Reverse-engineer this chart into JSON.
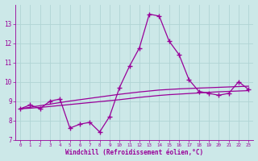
{
  "x": [
    0,
    1,
    2,
    3,
    4,
    5,
    6,
    7,
    8,
    9,
    10,
    11,
    12,
    13,
    14,
    15,
    16,
    17,
    18,
    19,
    20,
    21,
    22,
    23
  ],
  "y_main": [
    8.6,
    8.8,
    8.6,
    9.0,
    9.1,
    7.6,
    7.8,
    7.9,
    7.4,
    8.2,
    9.7,
    10.8,
    11.75,
    13.5,
    13.4,
    12.1,
    11.4,
    10.1,
    9.5,
    9.4,
    9.3,
    9.4,
    10.0,
    9.6
  ],
  "y_smooth1": [
    8.6,
    8.68,
    8.76,
    8.84,
    8.92,
    9.0,
    9.07,
    9.14,
    9.21,
    9.28,
    9.35,
    9.41,
    9.47,
    9.52,
    9.57,
    9.6,
    9.63,
    9.65,
    9.67,
    9.69,
    9.71,
    9.73,
    9.75,
    9.77
  ],
  "y_smooth2": [
    8.6,
    8.63,
    8.67,
    8.72,
    8.77,
    8.82,
    8.87,
    8.92,
    8.97,
    9.02,
    9.07,
    9.13,
    9.19,
    9.24,
    9.29,
    9.33,
    9.36,
    9.39,
    9.42,
    9.45,
    9.48,
    9.5,
    9.52,
    9.54
  ],
  "line_color": "#990099",
  "bg_color": "#cce8e8",
  "grid_color": "#b0d4d4",
  "xlabel": "Windchill (Refroidissement éolien,°C)",
  "xlim": [
    -0.5,
    23.5
  ],
  "ylim": [
    7,
    14
  ],
  "yticks": [
    7,
    8,
    9,
    10,
    11,
    12,
    13
  ],
  "xticks": [
    0,
    1,
    2,
    3,
    4,
    5,
    6,
    7,
    8,
    9,
    10,
    11,
    12,
    13,
    14,
    15,
    16,
    17,
    18,
    19,
    20,
    21,
    22,
    23
  ],
  "marker": "+",
  "markersize": 4,
  "linewidth": 0.9
}
